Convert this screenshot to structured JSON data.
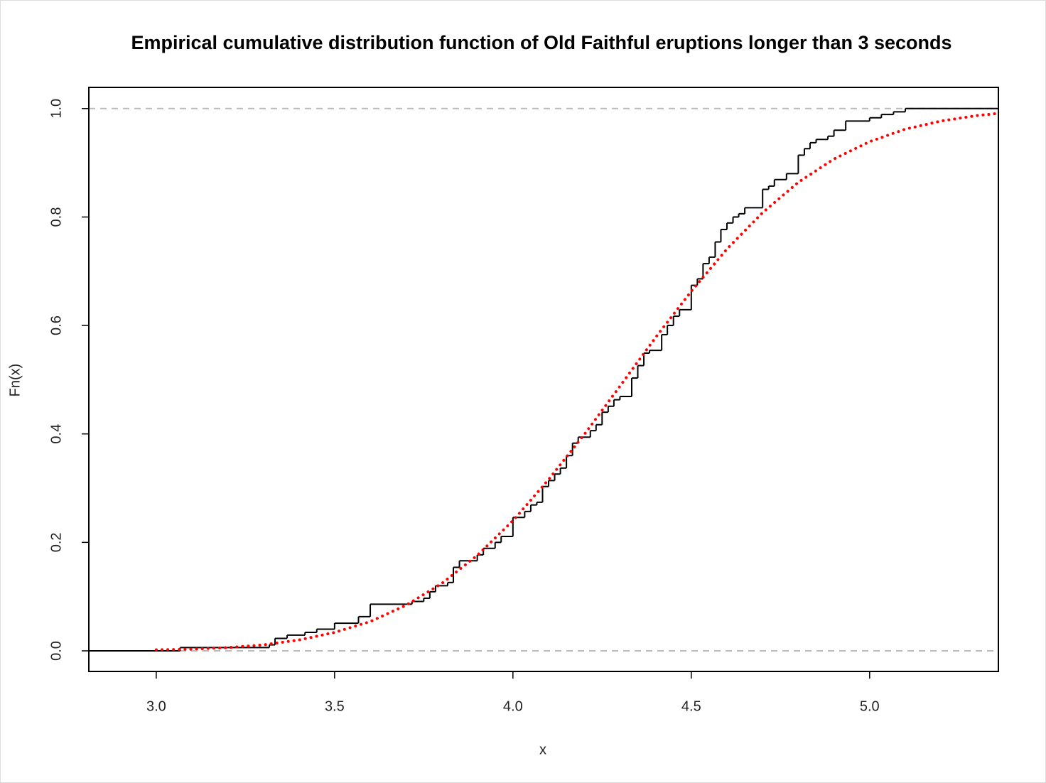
{
  "chart_data": {
    "type": "ecdf",
    "title": "Empirical cumulative distribution function of Old Faithful eruptions longer than 3 seconds",
    "x_label": "x",
    "y_label": "Fn(x)",
    "xlim": [
      2.811,
      5.361
    ],
    "ylim": [
      -0.038,
      1.039
    ],
    "xticks": [
      {
        "value": 3,
        "label": "3.0"
      },
      {
        "value": 3.5,
        "label": "3.5"
      },
      {
        "value": 4,
        "label": "4.0"
      },
      {
        "value": 4.5,
        "label": "4.5"
      },
      {
        "value": 5,
        "label": "5.0"
      }
    ],
    "yticks": [
      {
        "value": 0,
        "label": "0.0"
      },
      {
        "value": 0.2,
        "label": "0.2"
      },
      {
        "value": 0.4,
        "label": "0.4"
      },
      {
        "value": 0.6,
        "label": "0.6"
      },
      {
        "value": 0.8,
        "label": "0.8"
      },
      {
        "value": 1,
        "label": "1.0"
      }
    ],
    "hlines": [
      0,
      1
    ],
    "hline_color": "#bbbbbb",
    "series": [
      {
        "kind": "step",
        "color": "#000000",
        "x": [
          3.067,
          3.317,
          3.333,
          3.367,
          3.417,
          3.45,
          3.5,
          3.567,
          3.6,
          3.717,
          3.75,
          3.767,
          3.783,
          3.817,
          3.833,
          3.85,
          3.9,
          3.917,
          3.95,
          3.967,
          4.0,
          4.033,
          4.05,
          4.067,
          4.083,
          4.1,
          4.117,
          4.133,
          4.15,
          4.167,
          4.183,
          4.217,
          4.233,
          4.25,
          4.267,
          4.283,
          4.3,
          4.333,
          4.35,
          4.367,
          4.383,
          4.417,
          4.433,
          4.45,
          4.467,
          4.5,
          4.517,
          4.533,
          4.55,
          4.567,
          4.583,
          4.6,
          4.617,
          4.633,
          4.65,
          4.7,
          4.717,
          4.733,
          4.767,
          4.8,
          4.817,
          4.833,
          4.85,
          4.883,
          4.9,
          4.933,
          5.0,
          5.033,
          5.067,
          5.1
        ],
        "values": [
          0.006,
          0.011,
          0.023,
          0.029,
          0.034,
          0.04,
          0.051,
          0.063,
          0.086,
          0.091,
          0.097,
          0.109,
          0.12,
          0.126,
          0.154,
          0.166,
          0.177,
          0.189,
          0.2,
          0.211,
          0.246,
          0.257,
          0.269,
          0.274,
          0.303,
          0.314,
          0.326,
          0.337,
          0.36,
          0.383,
          0.394,
          0.406,
          0.417,
          0.44,
          0.451,
          0.463,
          0.469,
          0.503,
          0.526,
          0.549,
          0.554,
          0.583,
          0.6,
          0.617,
          0.629,
          0.674,
          0.686,
          0.714,
          0.726,
          0.754,
          0.777,
          0.789,
          0.8,
          0.806,
          0.817,
          0.851,
          0.857,
          0.869,
          0.88,
          0.914,
          0.926,
          0.937,
          0.943,
          0.949,
          0.96,
          0.977,
          0.983,
          0.989,
          0.994,
          1.0
        ]
      },
      {
        "kind": "dotted",
        "color": "#ff0000",
        "x": [
          3.0,
          3.1,
          3.2,
          3.3,
          3.4,
          3.5,
          3.6,
          3.7,
          3.8,
          3.9,
          4.0,
          4.1,
          4.2,
          4.3,
          4.4,
          4.5,
          4.6,
          4.7,
          4.8,
          4.9,
          5.0,
          5.1,
          5.2,
          5.3,
          5.36
        ],
        "values": [
          0.002,
          0.003,
          0.006,
          0.011,
          0.02,
          0.034,
          0.054,
          0.084,
          0.124,
          0.176,
          0.24,
          0.316,
          0.399,
          0.488,
          0.578,
          0.663,
          0.741,
          0.808,
          0.864,
          0.907,
          0.939,
          0.962,
          0.977,
          0.987,
          0.991
        ]
      }
    ]
  }
}
